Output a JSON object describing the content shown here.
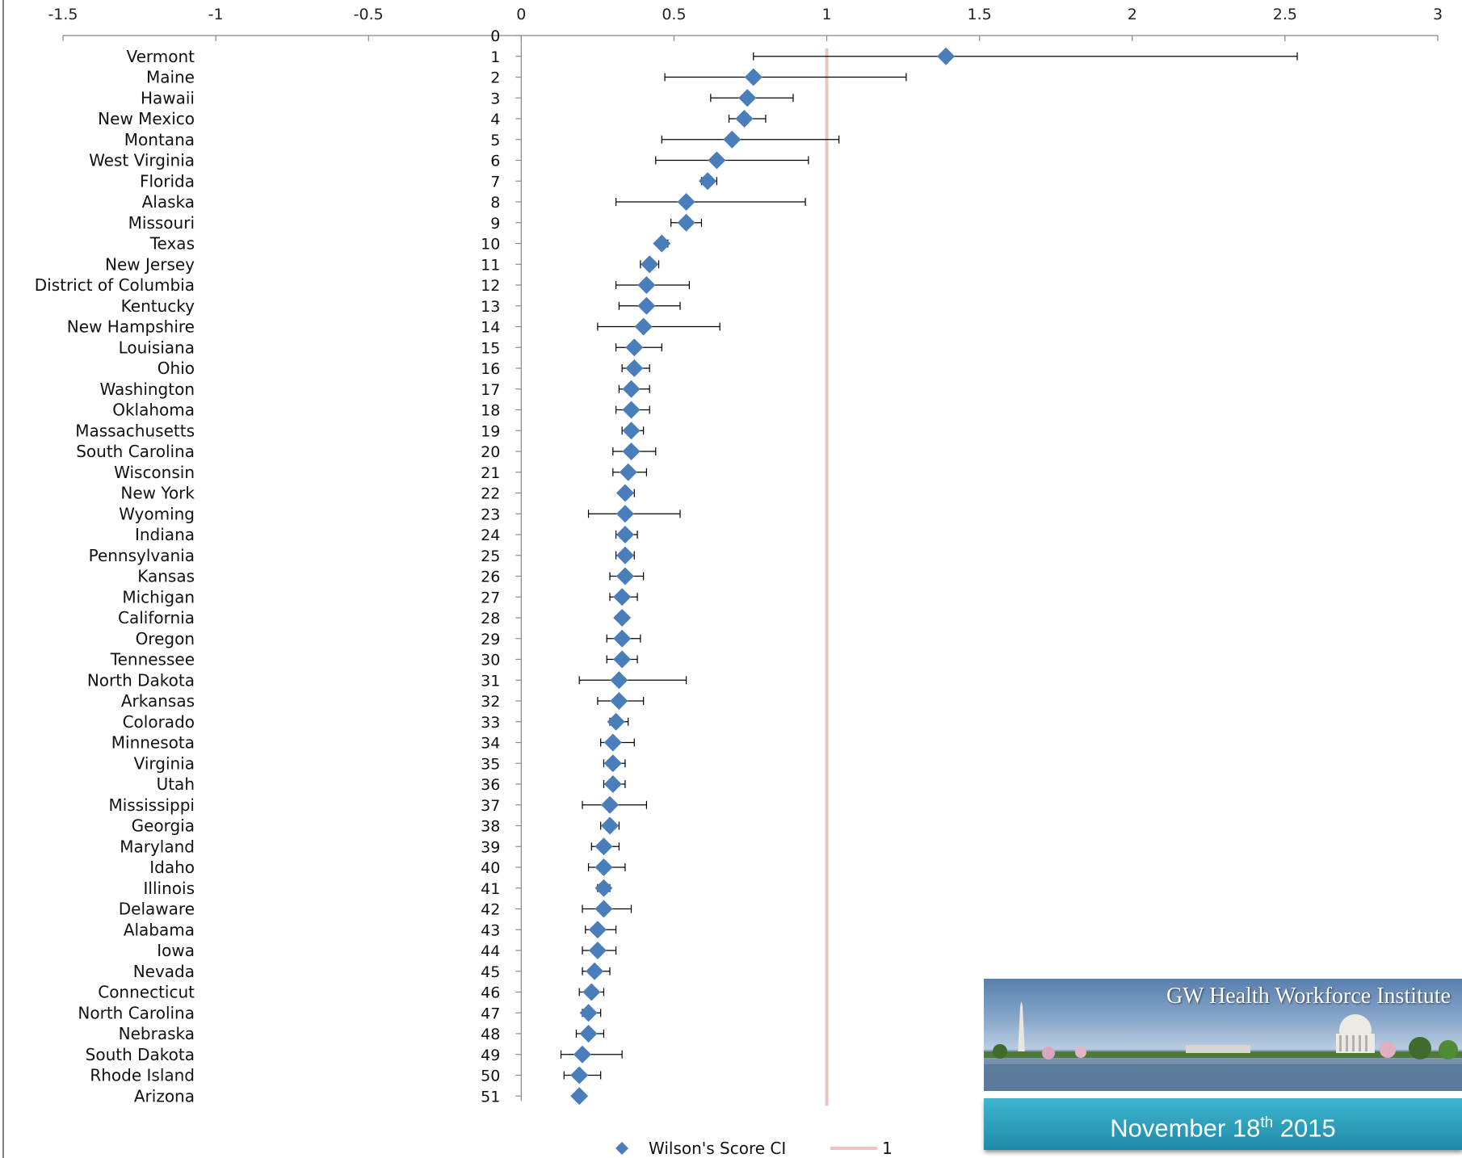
{
  "chart_data": {
    "type": "scatter",
    "title": "",
    "xlabel": "",
    "ylabel": "",
    "xlim": [
      -1.5,
      3
    ],
    "xticks": [
      "-1.5",
      "-1",
      "-0.5",
      "0",
      "0.5",
      "1",
      "1.5",
      "2",
      "2.5",
      "3"
    ],
    "ylim": [
      0,
      51
    ],
    "rank_zero_label": "0",
    "reference_line": {
      "x": 1,
      "label": "1",
      "color": "#eec3c3"
    },
    "series": [
      {
        "name": "Wilson's Score CI",
        "color": "#4a7ebb",
        "points": [
          {
            "state": "Vermont",
            "rank": 1,
            "value": 1.39,
            "lo": 0.76,
            "hi": 2.54
          },
          {
            "state": "Maine",
            "rank": 2,
            "value": 0.76,
            "lo": 0.47,
            "hi": 1.26
          },
          {
            "state": "Hawaii",
            "rank": 3,
            "value": 0.74,
            "lo": 0.62,
            "hi": 0.89
          },
          {
            "state": "New Mexico",
            "rank": 4,
            "value": 0.73,
            "lo": 0.68,
            "hi": 0.8
          },
          {
            "state": "Montana",
            "rank": 5,
            "value": 0.69,
            "lo": 0.46,
            "hi": 1.04
          },
          {
            "state": "West Virginia",
            "rank": 6,
            "value": 0.64,
            "lo": 0.44,
            "hi": 0.94
          },
          {
            "state": "Florida",
            "rank": 7,
            "value": 0.61,
            "lo": 0.59,
            "hi": 0.64
          },
          {
            "state": "Alaska",
            "rank": 8,
            "value": 0.54,
            "lo": 0.31,
            "hi": 0.93
          },
          {
            "state": "Missouri",
            "rank": 9,
            "value": 0.54,
            "lo": 0.49,
            "hi": 0.59
          },
          {
            "state": "Texas",
            "rank": 10,
            "value": 0.46,
            "lo": 0.45,
            "hi": 0.48
          },
          {
            "state": "New Jersey",
            "rank": 11,
            "value": 0.42,
            "lo": 0.39,
            "hi": 0.45
          },
          {
            "state": "District of Columbia",
            "rank": 12,
            "value": 0.41,
            "lo": 0.31,
            "hi": 0.55
          },
          {
            "state": "Kentucky",
            "rank": 13,
            "value": 0.41,
            "lo": 0.32,
            "hi": 0.52
          },
          {
            "state": "New Hampshire",
            "rank": 14,
            "value": 0.4,
            "lo": 0.25,
            "hi": 0.65
          },
          {
            "state": "Louisiana",
            "rank": 15,
            "value": 0.37,
            "lo": 0.31,
            "hi": 0.46
          },
          {
            "state": "Ohio",
            "rank": 16,
            "value": 0.37,
            "lo": 0.33,
            "hi": 0.42
          },
          {
            "state": "Washington",
            "rank": 17,
            "value": 0.36,
            "lo": 0.32,
            "hi": 0.42
          },
          {
            "state": "Oklahoma",
            "rank": 18,
            "value": 0.36,
            "lo": 0.31,
            "hi": 0.42
          },
          {
            "state": "Massachusetts",
            "rank": 19,
            "value": 0.36,
            "lo": 0.33,
            "hi": 0.4
          },
          {
            "state": "South Carolina",
            "rank": 20,
            "value": 0.36,
            "lo": 0.3,
            "hi": 0.44
          },
          {
            "state": "Wisconsin",
            "rank": 21,
            "value": 0.35,
            "lo": 0.3,
            "hi": 0.41
          },
          {
            "state": "New York",
            "rank": 22,
            "value": 0.34,
            "lo": 0.33,
            "hi": 0.37
          },
          {
            "state": "Wyoming",
            "rank": 23,
            "value": 0.34,
            "lo": 0.22,
            "hi": 0.52
          },
          {
            "state": "Indiana",
            "rank": 24,
            "value": 0.34,
            "lo": 0.31,
            "hi": 0.38
          },
          {
            "state": "Pennsylvania",
            "rank": 25,
            "value": 0.34,
            "lo": 0.31,
            "hi": 0.37
          },
          {
            "state": "Kansas",
            "rank": 26,
            "value": 0.34,
            "lo": 0.29,
            "hi": 0.4
          },
          {
            "state": "Michigan",
            "rank": 27,
            "value": 0.33,
            "lo": 0.29,
            "hi": 0.38
          },
          {
            "state": "California",
            "rank": 28,
            "value": 0.33,
            "lo": 0.32,
            "hi": 0.34
          },
          {
            "state": "Oregon",
            "rank": 29,
            "value": 0.33,
            "lo": 0.28,
            "hi": 0.39
          },
          {
            "state": "Tennessee",
            "rank": 30,
            "value": 0.33,
            "lo": 0.28,
            "hi": 0.38
          },
          {
            "state": "North Dakota",
            "rank": 31,
            "value": 0.32,
            "lo": 0.19,
            "hi": 0.54
          },
          {
            "state": "Arkansas",
            "rank": 32,
            "value": 0.32,
            "lo": 0.25,
            "hi": 0.4
          },
          {
            "state": "Colorado",
            "rank": 33,
            "value": 0.31,
            "lo": 0.29,
            "hi": 0.35
          },
          {
            "state": "Minnesota",
            "rank": 34,
            "value": 0.3,
            "lo": 0.26,
            "hi": 0.37
          },
          {
            "state": "Virginia",
            "rank": 35,
            "value": 0.3,
            "lo": 0.27,
            "hi": 0.34
          },
          {
            "state": "Utah",
            "rank": 36,
            "value": 0.3,
            "lo": 0.27,
            "hi": 0.34
          },
          {
            "state": "Mississippi",
            "rank": 37,
            "value": 0.29,
            "lo": 0.2,
            "hi": 0.41
          },
          {
            "state": "Georgia",
            "rank": 38,
            "value": 0.29,
            "lo": 0.26,
            "hi": 0.32
          },
          {
            "state": "Maryland",
            "rank": 39,
            "value": 0.27,
            "lo": 0.23,
            "hi": 0.32
          },
          {
            "state": "Idaho",
            "rank": 40,
            "value": 0.27,
            "lo": 0.22,
            "hi": 0.34
          },
          {
            "state": "Illinois",
            "rank": 41,
            "value": 0.27,
            "lo": 0.25,
            "hi": 0.29
          },
          {
            "state": "Delaware",
            "rank": 42,
            "value": 0.27,
            "lo": 0.2,
            "hi": 0.36
          },
          {
            "state": "Alabama",
            "rank": 43,
            "value": 0.25,
            "lo": 0.21,
            "hi": 0.31
          },
          {
            "state": "Iowa",
            "rank": 44,
            "value": 0.25,
            "lo": 0.2,
            "hi": 0.31
          },
          {
            "state": "Nevada",
            "rank": 45,
            "value": 0.24,
            "lo": 0.2,
            "hi": 0.29
          },
          {
            "state": "Connecticut",
            "rank": 46,
            "value": 0.23,
            "lo": 0.19,
            "hi": 0.27
          },
          {
            "state": "North Carolina",
            "rank": 47,
            "value": 0.22,
            "lo": 0.2,
            "hi": 0.26
          },
          {
            "state": "Nebraska",
            "rank": 48,
            "value": 0.22,
            "lo": 0.18,
            "hi": 0.27
          },
          {
            "state": "South Dakota",
            "rank": 49,
            "value": 0.2,
            "lo": 0.13,
            "hi": 0.33
          },
          {
            "state": "Rhode Island",
            "rank": 50,
            "value": 0.19,
            "lo": 0.14,
            "hi": 0.26
          },
          {
            "state": "Arizona",
            "rank": 51,
            "value": 0.19,
            "lo": 0.18,
            "hi": 0.2
          }
        ]
      }
    ],
    "legend": {
      "position": "bottom",
      "entries": [
        "Wilson's Score CI",
        "1"
      ]
    }
  },
  "banner": {
    "title": "GW Health Workforce Institute",
    "date_main": "November 18",
    "date_sup": "th",
    "date_tail": " 2015"
  }
}
